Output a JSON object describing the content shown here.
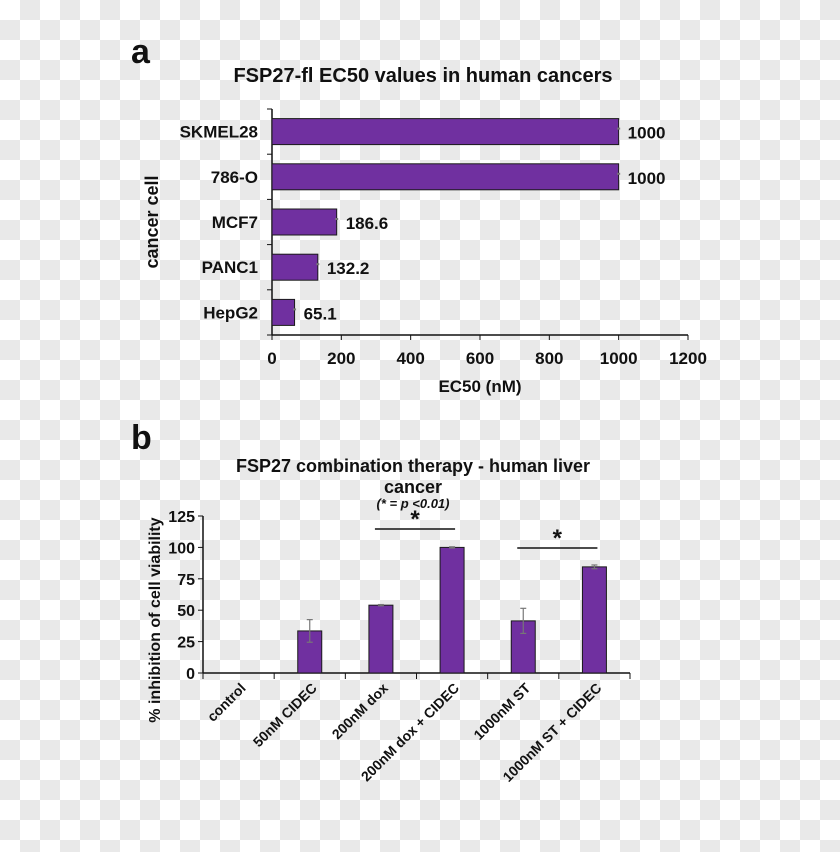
{
  "chart_data": [
    {
      "panel_label": "a",
      "type": "bar",
      "orientation": "horizontal",
      "title": "FSP27-fl EC50 values in human cancers",
      "xlabel": "EC50 (nM)",
      "ylabel": "cancer cell",
      "categories": [
        "SKMEL28",
        "786-O",
        "MCF7",
        "PANC1",
        "HepG2"
      ],
      "values": [
        1000,
        1000,
        186.6,
        132.2,
        65.1
      ],
      "data_labels": [
        "1000",
        "1000",
        "186.6",
        "132.2",
        "65.1"
      ],
      "xlim": [
        0,
        1200
      ],
      "xticks": [
        "0",
        "200",
        "400",
        "600",
        "800",
        "1000",
        "1200"
      ],
      "bar_color": "#7030a0",
      "grid": false
    },
    {
      "panel_label": "b",
      "type": "bar",
      "title": "FSP27 combination therapy - human liver cancer",
      "subtitle": "(* = p <0.01)",
      "ylabel": "% inhibition of cell viability",
      "xlabel": "",
      "categories": [
        "control",
        "50nM CIDEC",
        "200nM dox",
        "200nM dox + CIDEC",
        "1000nM ST",
        "1000nM ST + CIDEC"
      ],
      "values": [
        0,
        33.5,
        54,
        100,
        41.5,
        84.5
      ],
      "errors": [
        0,
        9,
        0.5,
        0.5,
        10,
        1.5
      ],
      "ylim": [
        0,
        125
      ],
      "yticks": [
        "0",
        "25",
        "50",
        "75",
        "100",
        "125"
      ],
      "significance": [
        {
          "from": "200nM dox",
          "to": "200nM dox + CIDEC",
          "label": "*"
        },
        {
          "from": "1000nM ST",
          "to": "1000nM ST + CIDEC",
          "label": "*"
        }
      ],
      "bar_color": "#7030a0",
      "grid": false
    }
  ]
}
